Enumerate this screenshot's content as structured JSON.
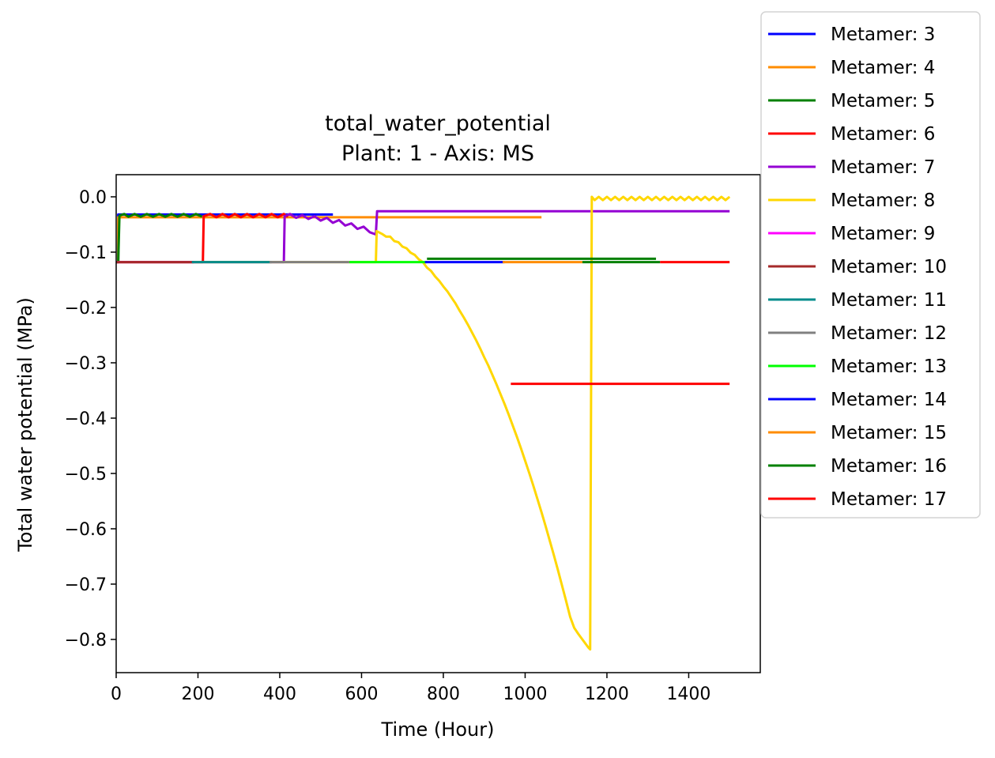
{
  "chart_data": {
    "type": "line",
    "title_line1": "total_water_potential",
    "title_line2": "Plant: 1 - Axis: MS",
    "xlabel": "Time (Hour)",
    "ylabel": "Total water potential (MPa)",
    "xlim": [
      0,
      1575
    ],
    "ylim": [
      -0.86,
      0.04
    ],
    "x_ticks": [
      0,
      200,
      400,
      600,
      800,
      1000,
      1200,
      1400
    ],
    "x_tick_labels": [
      "0",
      "200",
      "400",
      "600",
      "800",
      "1000",
      "1200",
      "1400"
    ],
    "y_ticks": [
      0.0,
      -0.1,
      -0.2,
      -0.3,
      -0.4,
      -0.5,
      -0.6,
      -0.7,
      -0.8
    ],
    "y_tick_labels": [
      "0.0",
      "−0.1",
      "−0.2",
      "−0.3",
      "−0.4",
      "−0.5",
      "−0.6",
      "−0.7",
      "−0.8"
    ],
    "grid": false,
    "legend_position": "outside-right",
    "series": [
      {
        "name": "Metamer: 3",
        "color": "#0000ff",
        "points": [
          [
            0,
            -0.118
          ],
          [
            5,
            -0.118
          ],
          [
            5,
            -0.032
          ],
          [
            530,
            -0.032
          ]
        ]
      },
      {
        "name": "Metamer: 4",
        "color": "#ff8c00",
        "points": [
          [
            0,
            -0.118
          ],
          [
            5,
            -0.118
          ],
          [
            5,
            -0.037
          ],
          [
            1040,
            -0.037
          ]
        ]
      },
      {
        "name": "Metamer: 5",
        "color": "#008000",
        "points": [
          [
            0,
            -0.118
          ],
          [
            5,
            -0.118
          ],
          [
            8,
            -0.034
          ],
          [
            20,
            -0.031
          ],
          [
            30,
            -0.036
          ],
          [
            45,
            -0.031
          ],
          [
            60,
            -0.036
          ],
          [
            75,
            -0.031
          ],
          [
            90,
            -0.036
          ],
          [
            105,
            -0.031
          ],
          [
            120,
            -0.036
          ],
          [
            135,
            -0.031
          ],
          [
            150,
            -0.036
          ],
          [
            165,
            -0.031
          ],
          [
            180,
            -0.036
          ],
          [
            195,
            -0.031
          ],
          [
            210,
            -0.036
          ]
        ]
      },
      {
        "name": "Metamer: 6",
        "color": "#ff0000",
        "points": [
          [
            0,
            -0.118
          ],
          [
            212,
            -0.118
          ],
          [
            214,
            -0.035
          ],
          [
            230,
            -0.031
          ],
          [
            245,
            -0.037
          ],
          [
            260,
            -0.031
          ],
          [
            275,
            -0.037
          ],
          [
            290,
            -0.031
          ],
          [
            305,
            -0.037
          ],
          [
            320,
            -0.031
          ],
          [
            335,
            -0.037
          ],
          [
            350,
            -0.031
          ],
          [
            365,
            -0.037
          ],
          [
            380,
            -0.031
          ],
          [
            395,
            -0.037
          ],
          [
            410,
            -0.031
          ],
          [
            420,
            -0.036
          ]
        ]
      },
      {
        "name": "Metamer: 7",
        "color": "#9400d3",
        "points": [
          [
            0,
            -0.118
          ],
          [
            410,
            -0.118
          ],
          [
            412,
            -0.035
          ],
          [
            425,
            -0.031
          ],
          [
            440,
            -0.038
          ],
          [
            455,
            -0.033
          ],
          [
            470,
            -0.04
          ],
          [
            485,
            -0.035
          ],
          [
            500,
            -0.043
          ],
          [
            515,
            -0.038
          ],
          [
            530,
            -0.047
          ],
          [
            545,
            -0.042
          ],
          [
            560,
            -0.052
          ],
          [
            575,
            -0.048
          ],
          [
            590,
            -0.058
          ],
          [
            605,
            -0.054
          ],
          [
            620,
            -0.064
          ],
          [
            635,
            -0.068
          ],
          [
            638,
            -0.026
          ],
          [
            1500,
            -0.026
          ]
        ]
      },
      {
        "name": "Metamer: 8",
        "color": "#ffd700",
        "points": [
          [
            0,
            -0.118
          ],
          [
            635,
            -0.118
          ],
          [
            637,
            -0.062
          ],
          [
            650,
            -0.067
          ],
          [
            660,
            -0.072
          ],
          [
            670,
            -0.072
          ],
          [
            680,
            -0.08
          ],
          [
            690,
            -0.082
          ],
          [
            700,
            -0.09
          ],
          [
            710,
            -0.093
          ],
          [
            720,
            -0.101
          ],
          [
            730,
            -0.105
          ],
          [
            740,
            -0.113
          ],
          [
            750,
            -0.118
          ],
          [
            760,
            -0.128
          ],
          [
            770,
            -0.134
          ],
          [
            780,
            -0.144
          ],
          [
            790,
            -0.152
          ],
          [
            800,
            -0.162
          ],
          [
            810,
            -0.171
          ],
          [
            820,
            -0.182
          ],
          [
            830,
            -0.193
          ],
          [
            840,
            -0.206
          ],
          [
            850,
            -0.218
          ],
          [
            860,
            -0.231
          ],
          [
            870,
            -0.245
          ],
          [
            880,
            -0.259
          ],
          [
            890,
            -0.274
          ],
          [
            900,
            -0.29
          ],
          [
            910,
            -0.305
          ],
          [
            920,
            -0.322
          ],
          [
            930,
            -0.339
          ],
          [
            940,
            -0.357
          ],
          [
            950,
            -0.375
          ],
          [
            960,
            -0.394
          ],
          [
            970,
            -0.414
          ],
          [
            980,
            -0.434
          ],
          [
            990,
            -0.455
          ],
          [
            1000,
            -0.477
          ],
          [
            1010,
            -0.499
          ],
          [
            1020,
            -0.522
          ],
          [
            1030,
            -0.546
          ],
          [
            1040,
            -0.57
          ],
          [
            1050,
            -0.595
          ],
          [
            1060,
            -0.621
          ],
          [
            1070,
            -0.647
          ],
          [
            1080,
            -0.674
          ],
          [
            1090,
            -0.702
          ],
          [
            1100,
            -0.73
          ],
          [
            1110,
            -0.759
          ],
          [
            1120,
            -0.779
          ],
          [
            1130,
            -0.79
          ],
          [
            1140,
            -0.8
          ],
          [
            1155,
            -0.815
          ],
          [
            1159,
            -0.818
          ],
          [
            1163,
            0.0
          ],
          [
            1170,
            -0.006
          ],
          [
            1180,
            0.0
          ],
          [
            1190,
            -0.006
          ],
          [
            1200,
            0.0
          ],
          [
            1210,
            -0.006
          ],
          [
            1220,
            0.0
          ],
          [
            1230,
            -0.006
          ],
          [
            1240,
            0.0
          ],
          [
            1250,
            -0.006
          ],
          [
            1260,
            0.0
          ],
          [
            1270,
            -0.006
          ],
          [
            1280,
            0.0
          ],
          [
            1290,
            -0.006
          ],
          [
            1300,
            0.0
          ],
          [
            1310,
            -0.006
          ],
          [
            1320,
            0.0
          ],
          [
            1330,
            -0.006
          ],
          [
            1340,
            0.0
          ],
          [
            1350,
            -0.006
          ],
          [
            1360,
            0.0
          ],
          [
            1370,
            -0.006
          ],
          [
            1380,
            0.0
          ],
          [
            1390,
            -0.006
          ],
          [
            1400,
            0.0
          ],
          [
            1410,
            -0.006
          ],
          [
            1420,
            0.0
          ],
          [
            1430,
            -0.006
          ],
          [
            1440,
            0.0
          ],
          [
            1450,
            -0.006
          ],
          [
            1460,
            0.0
          ],
          [
            1470,
            -0.006
          ],
          [
            1480,
            0.0
          ],
          [
            1490,
            -0.006
          ],
          [
            1500,
            0.0
          ]
        ]
      },
      {
        "name": "Metamer: 9",
        "color": "#ff00ff",
        "points": [
          [
            0,
            -0.118
          ],
          [
            190,
            -0.118
          ]
        ]
      },
      {
        "name": "Metamer: 10",
        "color": "#a52a2a",
        "points": [
          [
            0,
            -0.118
          ],
          [
            190,
            -0.118
          ]
        ]
      },
      {
        "name": "Metamer: 11",
        "color": "#008b8b",
        "points": [
          [
            185,
            -0.118
          ],
          [
            380,
            -0.118
          ]
        ]
      },
      {
        "name": "Metamer: 12",
        "color": "#808080",
        "points": [
          [
            375,
            -0.118
          ],
          [
            570,
            -0.118
          ]
        ]
      },
      {
        "name": "Metamer: 13",
        "color": "#00ff00",
        "points": [
          [
            570,
            -0.118
          ],
          [
            760,
            -0.118
          ]
        ]
      },
      {
        "name": "Metamer: 14",
        "color": "#0000ff",
        "points": [
          [
            755,
            -0.118
          ],
          [
            950,
            -0.118
          ]
        ]
      },
      {
        "name": "Metamer: 15",
        "color": "#ff8c00",
        "points": [
          [
            945,
            -0.118
          ],
          [
            1140,
            -0.118
          ]
        ]
      },
      {
        "name": "Metamer: 16",
        "color": "#008000",
        "points": [
          [
            760,
            -0.112
          ],
          [
            1320,
            -0.112
          ],
          [
            1140,
            -0.118
          ],
          [
            1330,
            -0.118
          ]
        ]
      },
      {
        "name": "Metamer: 17",
        "color": "#ff0000",
        "points": [
          [
            965,
            -0.338
          ],
          [
            1500,
            -0.338
          ],
          [
            1330,
            -0.118
          ],
          [
            1500,
            -0.118
          ]
        ]
      }
    ]
  }
}
